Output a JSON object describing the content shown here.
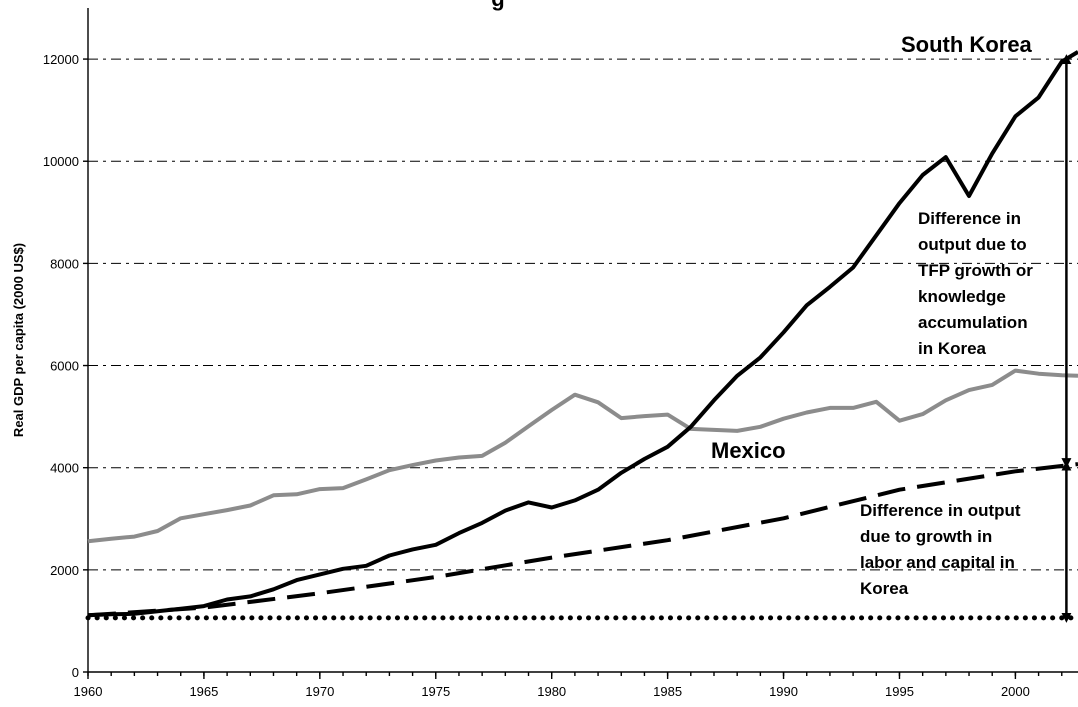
{
  "chart_data": {
    "type": "line",
    "title_partial": "g",
    "ylabel": "Real GDP per capita (2000 US$)",
    "xlabel": "",
    "xlim": [
      1960,
      2002.7
    ],
    "ylim": [
      0,
      13000
    ],
    "x_ticks": [
      "1960",
      "1965",
      "1970",
      "1975",
      "1980",
      "1985",
      "1990",
      "1995",
      "2000"
    ],
    "y_ticks": [
      "0",
      "2000",
      "4000",
      "6000",
      "8000",
      "10000",
      "12000"
    ],
    "grid": "horizontal dash-dot",
    "series": [
      {
        "name": "South Korea",
        "color": "#000000",
        "style": "solid",
        "x": [
          1960,
          1961,
          1962,
          1963,
          1964,
          1965,
          1966,
          1967,
          1968,
          1969,
          1970,
          1971,
          1972,
          1973,
          1974,
          1975,
          1976,
          1977,
          1978,
          1979,
          1980,
          1981,
          1982,
          1983,
          1984,
          1985,
          1986,
          1987,
          1988,
          1989,
          1990,
          1991,
          1992,
          1993,
          1994,
          1995,
          1996,
          1997,
          1998,
          1999,
          2000,
          2001,
          2002,
          2002.7
        ],
        "y": [
          1110,
          1130,
          1140,
          1190,
          1240,
          1290,
          1420,
          1480,
          1620,
          1800,
          1910,
          2020,
          2080,
          2280,
          2400,
          2490,
          2720,
          2920,
          3160,
          3320,
          3220,
          3360,
          3570,
          3900,
          4170,
          4410,
          4800,
          5320,
          5800,
          6160,
          6650,
          7180,
          7540,
          7920,
          8550,
          9180,
          9730,
          10080,
          9320,
          10150,
          10880,
          11250,
          11950,
          12140
        ]
      },
      {
        "name": "Mexico",
        "color": "#8c8c8c",
        "style": "solid",
        "x": [
          1960,
          1961,
          1962,
          1963,
          1964,
          1965,
          1966,
          1967,
          1968,
          1969,
          1970,
          1971,
          1972,
          1973,
          1974,
          1975,
          1976,
          1977,
          1978,
          1979,
          1980,
          1981,
          1982,
          1983,
          1984,
          1985,
          1986,
          1987,
          1988,
          1989,
          1990,
          1991,
          1992,
          1993,
          1994,
          1995,
          1996,
          1997,
          1998,
          1999,
          2000,
          2001,
          2002,
          2002.7
        ],
        "y": [
          2560,
          2610,
          2650,
          2760,
          3010,
          3090,
          3170,
          3260,
          3460,
          3480,
          3580,
          3600,
          3770,
          3950,
          4050,
          4140,
          4200,
          4230,
          4490,
          4810,
          5130,
          5430,
          5280,
          4970,
          5010,
          5040,
          4760,
          4740,
          4720,
          4800,
          4960,
          5080,
          5170,
          5170,
          5290,
          4920,
          5050,
          5320,
          5520,
          5620,
          5900,
          5840,
          5810,
          5800
        ]
      },
      {
        "name": "",
        "color": "#000000",
        "style": "dashed",
        "x": [
          1960,
          1965,
          1970,
          1975,
          1980,
          1985,
          1990,
          1995,
          2000,
          2002.7
        ],
        "y": [
          1110,
          1260,
          1540,
          1860,
          2240,
          2580,
          3010,
          3570,
          3930,
          4070
        ]
      },
      {
        "name": "",
        "color": "#000000",
        "style": "dotted",
        "x": [
          1960,
          2002.7
        ],
        "y": [
          1060,
          1060
        ]
      }
    ],
    "series_labels": [
      "South Korea",
      "Mexico"
    ],
    "annotations": {
      "tfp": [
        "Difference in",
        "output due to",
        "TFP growth or",
        "knowledge",
        "accumulation",
        "in Korea"
      ],
      "labor": [
        "Difference in output",
        "due to growth in",
        "labor and capital in",
        "Korea"
      ]
    },
    "arrows": [
      {
        "x": 2002.2,
        "y_from": 4090,
        "y_to": 12000
      },
      {
        "x": 2002.2,
        "y_from": 1060,
        "y_to": 4040
      }
    ]
  }
}
